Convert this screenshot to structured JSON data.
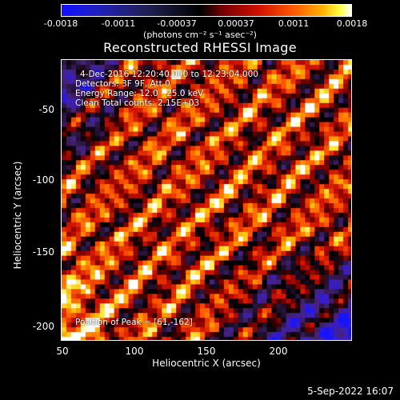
{
  "colorbar": {
    "ticks": [
      "-0.0018",
      "-0.0011",
      "-0.00037",
      "0.00037",
      "0.0011",
      "0.0018"
    ],
    "unit": "(photons cm⁻² s⁻¹ asec⁻²)"
  },
  "title": "Reconstructed RHESSI Image",
  "info": {
    "line1": "4-Dec-2016 12:20:40.000 to 12:23:04.000",
    "line2": "Detectors: 3F 9F, Att 0",
    "line3": "Energy Range: 12.0 - 25.0 keV",
    "line4": "Clean     Total counts: 2.15E+03"
  },
  "peak": "Position of Peak = [61,-162]",
  "axes": {
    "xlabel": "Heliocentric X (arcsec)",
    "ylabel": "Heliocentric Y (arcsec)",
    "xticks": [
      "50",
      "100",
      "150",
      "200"
    ],
    "yticks": [
      "-50",
      "-100",
      "-150",
      "-200"
    ]
  },
  "timestamp": "5-Sep-2022 16:07"
}
